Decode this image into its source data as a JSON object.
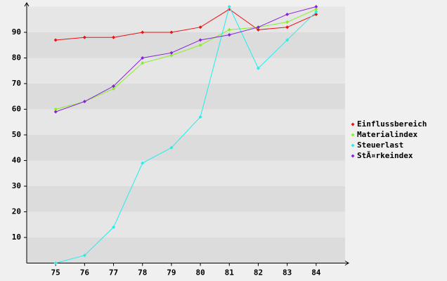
{
  "chart_data": {
    "type": "line",
    "categories": [
      "75",
      "76",
      "77",
      "78",
      "79",
      "80",
      "81",
      "82",
      "83",
      "84"
    ],
    "series": [
      {
        "name": "Einflussbereich",
        "color": "#ee1111",
        "values": [
          87,
          88,
          88,
          90,
          90,
          92,
          99,
          91,
          92,
          97
        ]
      },
      {
        "name": "Materialindex",
        "color": "#88ee22",
        "values": [
          60,
          63,
          68,
          78,
          81,
          85,
          91,
          92,
          94,
          99
        ]
      },
      {
        "name": "Steuerlast",
        "color": "#22eeee",
        "values": [
          0,
          3,
          14,
          39,
          45,
          57,
          100,
          76,
          87,
          98
        ]
      },
      {
        "name": "StÃ¤rkeindex",
        "color": "#8822dd",
        "values": [
          59,
          63,
          69,
          80,
          82,
          87,
          89,
          92,
          97,
          100
        ]
      }
    ],
    "ylim": [
      0,
      100
    ],
    "yticks": [
      10,
      20,
      30,
      40,
      50,
      60,
      70,
      80,
      90
    ],
    "grid": true,
    "legend": "right"
  }
}
